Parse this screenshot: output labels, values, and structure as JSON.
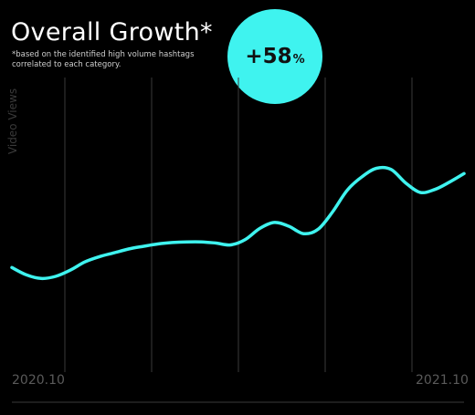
{
  "title": "Overall Growth*",
  "subtitle": "*based on the identified high volume hashtags correlated to each category.",
  "badge": {
    "value": "+58",
    "unit": "%"
  },
  "chart_data": {
    "type": "line",
    "ylabel": "Video Views",
    "x_ticks": [
      "2020.10",
      "2021.10"
    ],
    "series": [
      {
        "values": [
          0.355,
          0.33,
          0.318,
          0.325,
          0.346,
          0.374,
          0.392,
          0.405,
          0.418,
          0.427,
          0.435,
          0.44,
          0.442,
          0.442,
          0.438,
          0.432,
          0.45,
          0.488,
          0.508,
          0.495,
          0.47,
          0.485,
          0.545,
          0.618,
          0.663,
          0.692,
          0.688,
          0.642,
          0.61,
          0.62,
          0.645,
          0.674
        ]
      }
    ],
    "line_color": "#3ff3ef",
    "grid": "vertical"
  }
}
